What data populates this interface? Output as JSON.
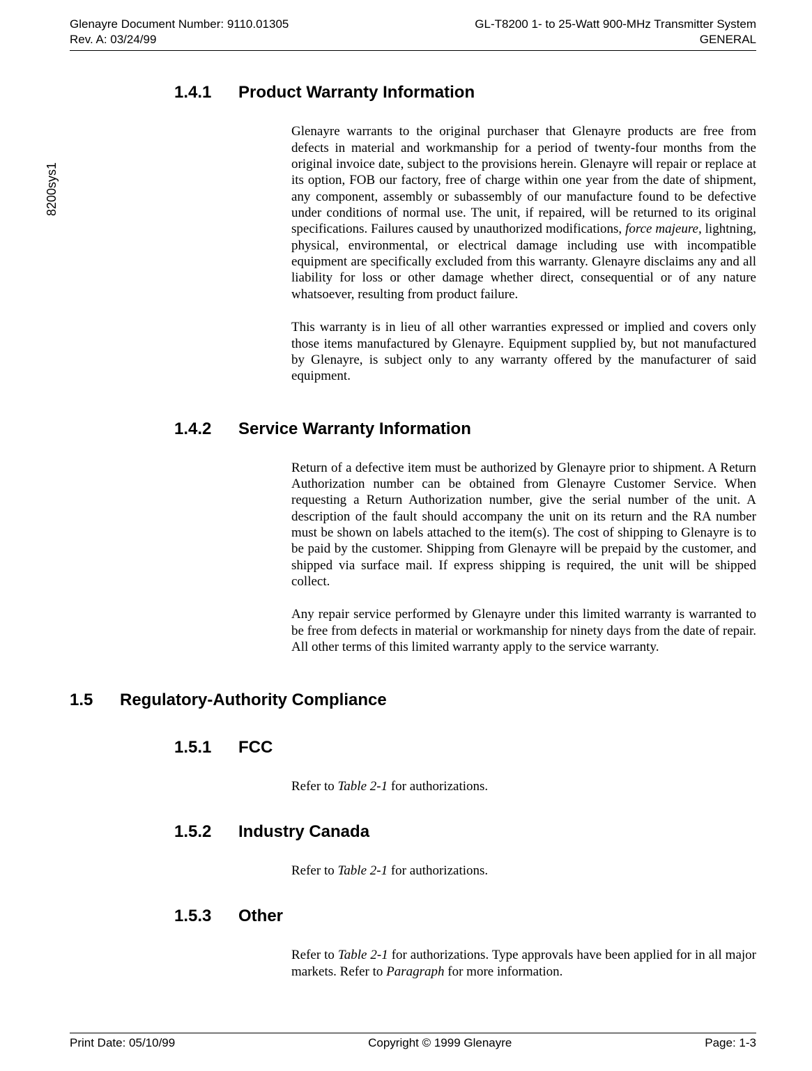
{
  "header": {
    "doc_number_label": "Glenayre Document Number: 9110.01305",
    "rev_label": "Rev. A: 03/24/99",
    "system_label": "GL-T8200 1- to 25-Watt 900-MHz Transmitter System",
    "section_label": "GENERAL"
  },
  "sidetext": "8200sys1",
  "sections": {
    "s141": {
      "num": "1.4.1",
      "title": "Product Warranty Information",
      "p1a": "Glenayre warrants to the original purchaser that Glenayre products are free from defects in material and workmanship for a period of twenty-four months from the original invoice date, subject to the provisions herein. Glenayre will repair or replace at its option, FOB our factory, free of charge within one year from the date of shipment, any component, assembly or subassembly of our manufacture found to be defective under conditions of normal use. The unit, if repaired, will be returned to its original specifications. Failures caused by unauthorized  modifications, ",
      "p1_italic": "force majeure,",
      "p1b": " lightning, physical, environmental, or electrical damage including use with incompatible equipment are specifically excluded from this warranty. Glenayre disclaims any and all liability for loss or other damage whether direct, consequential or of any nature whatsoever, resulting from product failure.",
      "p2": "This warranty is in lieu of all other warranties expressed or implied and covers only those items manufactured by Glenayre. Equipment supplied by, but not manufactured by Glenayre, is subject only to any warranty offered by the manufacturer of said equipment."
    },
    "s142": {
      "num": "1.4.2",
      "title": "Service Warranty Information",
      "p1": "Return of a defective item must be authorized by Glenayre prior to shipment. A Return Authorization number can be obtained from Glenayre Customer Service. When requesting a Return Authorization number, give the serial number of the unit. A description of the fault should accompany the unit on its return and the RA number must be shown on labels attached to the item(s). The cost of shipping to Glenayre is to be paid by the customer. Shipping from Glenayre will be prepaid by the customer, and shipped via surface mail. If express shipping is required, the unit will be shipped collect.",
      "p2": "Any repair service performed by Glenayre under this limited warranty is warranted to be free from defects in material or workmanship for ninety days from the date of repair. All other terms of this limited warranty apply to the service warranty."
    },
    "s15": {
      "num": "1.5",
      "title": "Regulatory-Authority Compliance"
    },
    "s151": {
      "num": "1.5.1",
      "title": "FCC",
      "p1a": "Refer to ",
      "p1_italic": "Table 2-1",
      "p1b": " for authorizations."
    },
    "s152": {
      "num": "1.5.2",
      "title": "Industry Canada",
      "p1a": "Refer to ",
      "p1_italic": "Table 2-1",
      "p1b": " for authorizations."
    },
    "s153": {
      "num": "1.5.3",
      "title": "Other",
      "p1a": "Refer to ",
      "p1_italic1": "Table 2-1",
      "p1b": " for authorizations. Type approvals have been applied for in all major markets. Refer to ",
      "p1_italic2": "Paragraph ",
      "p1c": " for more information."
    }
  },
  "footer": {
    "print_date": "Print Date: 05/10/99",
    "copyright": "Copyright © 1999 Glenayre",
    "page": "Page: 1-3"
  }
}
